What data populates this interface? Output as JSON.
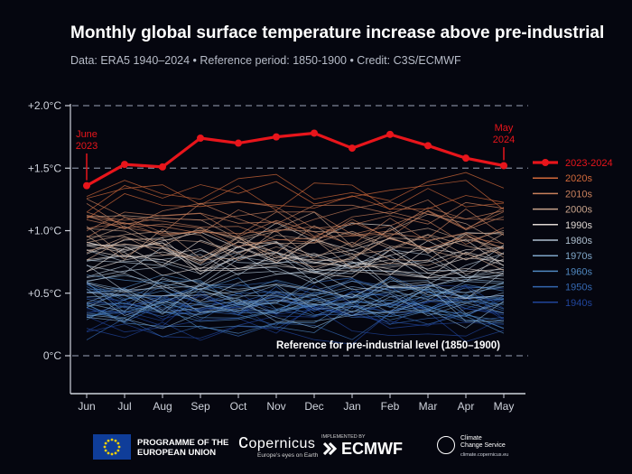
{
  "header": {
    "title": "Monthly global surface temperature increase above pre-industrial",
    "subtitle": "Data: ERA5 1940–2024  •  Reference period: 1850-1900  •  Credit: C3S/ECMWF"
  },
  "chart_data": {
    "type": "line",
    "categories": [
      "Jun",
      "Jul",
      "Aug",
      "Sep",
      "Oct",
      "Nov",
      "Dec",
      "Jan",
      "Feb",
      "Mar",
      "Apr",
      "May"
    ],
    "y_ticks": [
      {
        "value": 0,
        "label": "0°C"
      },
      {
        "value": 0.5,
        "label": "+0.5°C"
      },
      {
        "value": 1.0,
        "label": "+1.0°C"
      },
      {
        "value": 1.5,
        "label": "+1.5°C"
      },
      {
        "value": 2.0,
        "label": "+2.0°C"
      }
    ],
    "ylim": [
      -0.22,
      2.05
    ],
    "dashed_reference_lines": [
      0,
      1.5,
      2.0
    ],
    "reference_label": "Reference for pre-industrial level (1850–1900)",
    "highlight_series": {
      "name": "2023-2024",
      "color": "#e8151b",
      "values": [
        1.36,
        1.53,
        1.51,
        1.74,
        1.7,
        1.75,
        1.78,
        1.66,
        1.77,
        1.68,
        1.58,
        1.52
      ],
      "annotations": [
        {
          "text": "June\n2023",
          "index": 0
        },
        {
          "text": "May\n2024",
          "index": 11
        }
      ]
    },
    "decades": [
      {
        "name": "2020s",
        "color": "#d2693a",
        "base": 1.22,
        "count": 4
      },
      {
        "name": "2010s",
        "color": "#c9805c",
        "base": 1.02,
        "count": 10
      },
      {
        "name": "2000s",
        "color": "#c9a48c",
        "base": 0.88,
        "count": 10
      },
      {
        "name": "1990s",
        "color": "#dfd7d2",
        "base": 0.74,
        "count": 10
      },
      {
        "name": "1980s",
        "color": "#aebfcf",
        "base": 0.62,
        "count": 10
      },
      {
        "name": "1970s",
        "color": "#7fa6c8",
        "base": 0.44,
        "count": 10
      },
      {
        "name": "1960s",
        "color": "#4f87bf",
        "base": 0.36,
        "count": 10
      },
      {
        "name": "1950s",
        "color": "#3467b0",
        "base": 0.34,
        "count": 10
      },
      {
        "name": "1940s",
        "color": "#20449a",
        "base": 0.3,
        "count": 10
      }
    ],
    "legend_position": "right",
    "grid": false
  },
  "footer": {
    "eu_text": "PROGRAMME OF THE\nEUROPEAN UNION",
    "copernicus": "opernicus",
    "copernicus_sub": "Europe's eyes on Earth",
    "ecmwf_small": "IMPLEMENTED BY",
    "ecmwf": "ECMWF",
    "ccs": "Climate\nChange Service",
    "ccs_url": "climate.copernicus.eu"
  }
}
